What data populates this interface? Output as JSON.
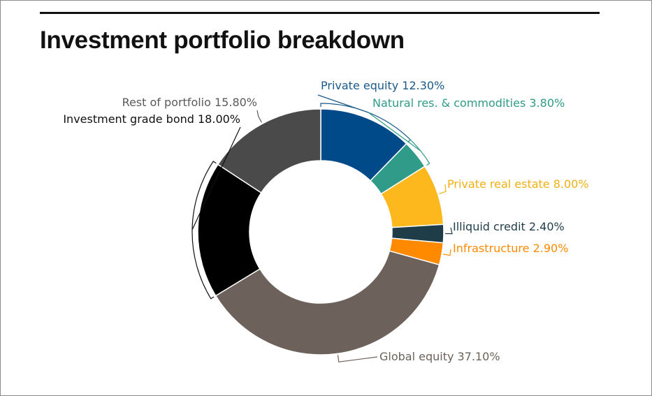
{
  "title": "Investment portfolio breakdown",
  "chart_data": {
    "type": "pie",
    "style": "donut",
    "title": "Investment portfolio breakdown",
    "start_angle_deg": 0,
    "direction": "clockwise",
    "slices": [
      {
        "name": "Private equity",
        "value": 12.3,
        "label": "Private equity 12.30%",
        "color": "#004a8a",
        "label_color": "#1a5a8a"
      },
      {
        "name": "Natural res. & commodities",
        "value": 3.8,
        "label": "Natural res. & commodities 3.80%",
        "color": "#2f9b88",
        "label_color": "#2f9b88"
      },
      {
        "name": "Private real estate",
        "value": 8.0,
        "label": "Private real estate 8.00%",
        "color": "#fdb81e",
        "label_color": "#f2b111"
      },
      {
        "name": "Illiquid credit",
        "value": 2.4,
        "label": "Illiquid credit 2.40%",
        "color": "#1e3d49",
        "label_color": "#1e3d49"
      },
      {
        "name": "Infrastructure",
        "value": 2.9,
        "label": "Infrastructure 2.90%",
        "color": "#ff8a00",
        "label_color": "#ff8a00"
      },
      {
        "name": "Global equity",
        "value": 37.1,
        "label": "Global equity 37.10%",
        "color": "#6d625b",
        "label_color": "#6d625b"
      },
      {
        "name": "Investment grade bond",
        "value": 18.0,
        "label": "Investment grade bond 18.00%",
        "color": "#000000",
        "label_color": "#111111"
      },
      {
        "name": "Rest of portfolio",
        "value": 15.8,
        "label": "Rest of portfolio 15.80%",
        "color": "#4a4a4a",
        "label_color": "#5a5a5a"
      }
    ]
  }
}
